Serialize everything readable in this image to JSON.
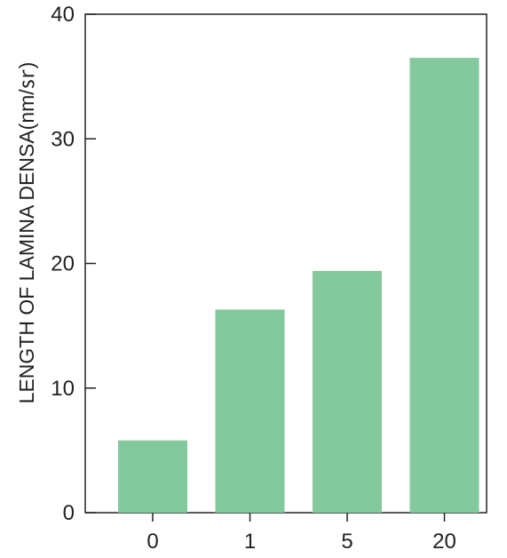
{
  "chart_data": {
    "type": "bar",
    "categories": [
      "0",
      "1",
      "5",
      "20"
    ],
    "values": [
      5.8,
      16.3,
      19.4,
      36.5
    ],
    "title": "",
    "xlabel": "",
    "ylabel": "LENGTH OF LAMINA DENSA(nm/㏛)",
    "ylim": [
      0,
      40
    ],
    "yticks": [
      "0",
      "10",
      "20",
      "30",
      "40"
    ],
    "grid": false,
    "bar_color": "#84c99d",
    "axis_color": "#222222"
  }
}
